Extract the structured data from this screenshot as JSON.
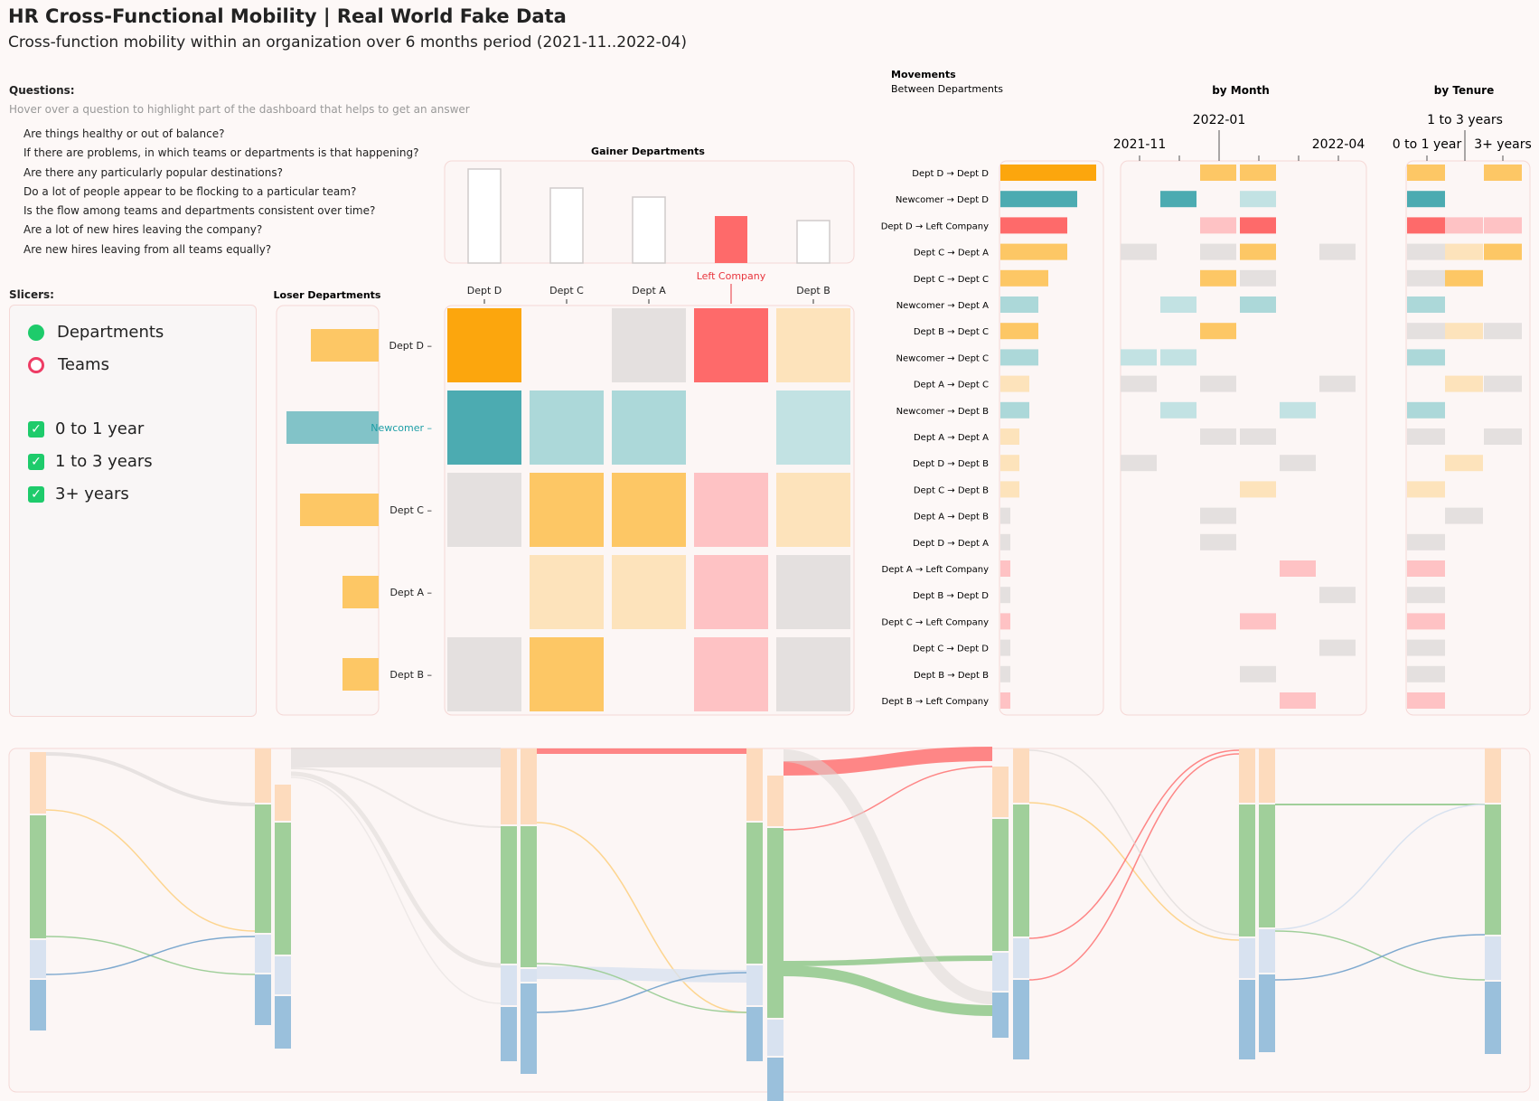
{
  "header": {
    "title": "HR Cross-Functional Mobility | Real World Fake Data",
    "subtitle": "Cross-function mobility within an organization over 6 months period (2021-11..2022-04)"
  },
  "questions": {
    "heading": "Questions:",
    "hint": "Hover over a question to highlight part of the dashboard that helps to get an answer",
    "items": [
      "Are things healthy or out of balance?",
      "If there are problems, in which teams or departments is that happening?",
      "Are there any particularly popular destinations?",
      "Do a lot of people appear to be flocking to a particular team?",
      "Is the flow among teams and departments consistent over time?",
      "Are a lot of new hires leaving the company?",
      "Are new hires leaving from all teams equally?"
    ]
  },
  "slicers": {
    "heading": "Slicers:",
    "grouping": [
      {
        "label": "Departments",
        "selected": true
      },
      {
        "label": "Teams",
        "selected": false
      }
    ],
    "tenure": [
      {
        "label": "0 to 1 year",
        "checked": true
      },
      {
        "label": "1 to 3 years",
        "checked": true
      },
      {
        "label": "3+ years",
        "checked": true
      }
    ]
  },
  "colors": {
    "orange": "#fca60d",
    "orange_mid": "#fdc765",
    "orange_light": "#fde3bb",
    "teal": "#4cabb1",
    "teal_light": "#acd8d9",
    "teal_lighter": "#c2e2e3",
    "red": "#fe6a6a",
    "red_light": "#fec2c4",
    "grey": "#e4e0df",
    "green": "#a0cf9a",
    "blue": "#9ac0dc",
    "blue_light": "#d8e2f0",
    "peach": "#fddbbd",
    "accent_red": "#e8353d",
    "accent_teal": "#1d9ea6"
  },
  "gainer": {
    "title": "Gainer Departments",
    "columns": [
      "Dept D",
      "Dept C",
      "Dept A",
      "Left Company",
      "Dept B"
    ],
    "values": [
      1.0,
      0.8,
      0.7,
      0.5,
      0.45
    ]
  },
  "loser": {
    "title": "Loser Departments",
    "rows": [
      "Dept D",
      "Newcomer",
      "Dept C",
      "Dept A",
      "Dept B"
    ],
    "values": [
      0.72,
      0.98,
      0.84,
      0.38,
      0.38
    ]
  },
  "matrix": {
    "rows": [
      "Dept D",
      "Newcomer",
      "Dept C",
      "Dept A",
      "Dept B"
    ],
    "cols": [
      "Dept D",
      "Dept C",
      "Dept A",
      "Left Company",
      "Dept B"
    ],
    "cells": [
      [
        "orange",
        null,
        "grey",
        "red",
        "orange_light"
      ],
      [
        "teal",
        "teal_light",
        "teal_light",
        null,
        "teal_lighter"
      ],
      [
        "grey",
        "orange_mid",
        "orange_mid",
        "red_light",
        "orange_light"
      ],
      [
        null,
        "orange_light",
        "orange_light",
        "red_light",
        "grey"
      ],
      [
        "grey",
        "orange_mid",
        null,
        "red_light",
        "grey"
      ]
    ]
  },
  "movements": {
    "title": "Movements",
    "subtitle": "Between Departments",
    "by_month_title": "by Month",
    "by_tenure_title": "by Tenure",
    "month_ticks": [
      "2021-11",
      "2022-01",
      "2022-04"
    ],
    "tenure_ticks": [
      "0 to 1 year",
      "1 to 3 years",
      "3+ years"
    ],
    "rows": [
      {
        "label": "Dept D → Dept D",
        "value": 1.0,
        "color": "orange",
        "months": [
          null,
          null,
          "orange_mid",
          "orange_mid",
          null,
          null
        ],
        "tenure": [
          "orange_mid",
          null,
          "orange_mid"
        ]
      },
      {
        "label": "Newcomer → Dept D",
        "value": 0.8,
        "color": "teal",
        "months": [
          null,
          "teal",
          null,
          "teal_lighter",
          null,
          null
        ],
        "tenure": [
          "teal",
          null,
          null
        ]
      },
      {
        "label": "Dept D → Left Company",
        "value": 0.7,
        "color": "red",
        "months": [
          null,
          null,
          "red_light",
          "red",
          null,
          null
        ],
        "tenure": [
          "red",
          "red_light",
          "red_light"
        ]
      },
      {
        "label": "Dept C → Dept A",
        "value": 0.7,
        "color": "orange_mid",
        "months": [
          "grey",
          null,
          "grey",
          "orange_mid",
          null,
          "grey"
        ],
        "tenure": [
          "grey",
          "orange_light",
          "orange_mid"
        ]
      },
      {
        "label": "Dept C → Dept C",
        "value": 0.5,
        "color": "orange_mid",
        "months": [
          null,
          null,
          "orange_mid",
          "grey",
          null,
          null
        ],
        "tenure": [
          "grey",
          "orange_mid",
          null
        ]
      },
      {
        "label": "Newcomer → Dept A",
        "value": 0.4,
        "color": "teal_light",
        "months": [
          null,
          "teal_lighter",
          null,
          "teal_light",
          null,
          null
        ],
        "tenure": [
          "teal_light",
          null,
          null
        ]
      },
      {
        "label": "Dept B → Dept C",
        "value": 0.4,
        "color": "orange_mid",
        "months": [
          null,
          null,
          "orange_mid",
          null,
          null,
          null
        ],
        "tenure": [
          "grey",
          "orange_light",
          "grey"
        ]
      },
      {
        "label": "Newcomer → Dept C",
        "value": 0.4,
        "color": "teal_light",
        "months": [
          "teal_lighter",
          "teal_lighter",
          null,
          null,
          null,
          null
        ],
        "tenure": [
          "teal_light",
          null,
          null
        ]
      },
      {
        "label": "Dept A → Dept C",
        "value": 0.3,
        "color": "orange_light",
        "months": [
          "grey",
          null,
          "grey",
          null,
          null,
          "grey"
        ],
        "tenure": [
          null,
          "orange_light",
          "grey"
        ]
      },
      {
        "label": "Newcomer → Dept B",
        "value": 0.3,
        "color": "teal_light",
        "months": [
          null,
          "teal_lighter",
          null,
          null,
          "teal_lighter",
          null
        ],
        "tenure": [
          "teal_light",
          null,
          null
        ]
      },
      {
        "label": "Dept A → Dept A",
        "value": 0.2,
        "color": "orange_light",
        "months": [
          null,
          null,
          "grey",
          "grey",
          null,
          null
        ],
        "tenure": [
          "grey",
          null,
          "grey"
        ]
      },
      {
        "label": "Dept D → Dept B",
        "value": 0.2,
        "color": "orange_light",
        "months": [
          "grey",
          null,
          null,
          null,
          "grey",
          null
        ],
        "tenure": [
          null,
          "orange_light",
          null
        ]
      },
      {
        "label": "Dept C → Dept B",
        "value": 0.2,
        "color": "orange_light",
        "months": [
          null,
          null,
          null,
          "orange_light",
          null,
          null
        ],
        "tenure": [
          "orange_light",
          null,
          null
        ]
      },
      {
        "label": "Dept A → Dept B",
        "value": 0.1,
        "color": "grey",
        "months": [
          null,
          null,
          "grey",
          null,
          null,
          null
        ],
        "tenure": [
          null,
          "grey",
          null
        ]
      },
      {
        "label": "Dept D → Dept A",
        "value": 0.1,
        "color": "grey",
        "months": [
          null,
          null,
          "grey",
          null,
          null,
          null
        ],
        "tenure": [
          "grey",
          null,
          null
        ]
      },
      {
        "label": "Dept A → Left Company",
        "value": 0.1,
        "color": "red_light",
        "months": [
          null,
          null,
          null,
          null,
          "red_light",
          null
        ],
        "tenure": [
          "red_light",
          null,
          null
        ]
      },
      {
        "label": "Dept B → Dept D",
        "value": 0.1,
        "color": "grey",
        "months": [
          null,
          null,
          null,
          null,
          null,
          "grey"
        ],
        "tenure": [
          "grey",
          null,
          null
        ]
      },
      {
        "label": "Dept C → Left Company",
        "value": 0.1,
        "color": "red_light",
        "months": [
          null,
          null,
          null,
          "red_light",
          null,
          null
        ],
        "tenure": [
          "red_light",
          null,
          null
        ]
      },
      {
        "label": "Dept C → Dept D",
        "value": 0.1,
        "color": "grey",
        "months": [
          null,
          null,
          null,
          null,
          null,
          "grey"
        ],
        "tenure": [
          "grey",
          null,
          null
        ]
      },
      {
        "label": "Dept B → Dept B",
        "value": 0.1,
        "color": "grey",
        "months": [
          null,
          null,
          null,
          "grey",
          null,
          null
        ],
        "tenure": [
          "grey",
          null,
          null
        ]
      },
      {
        "label": "Dept B → Left Company",
        "value": 0.1,
        "color": "red_light",
        "months": [
          null,
          null,
          null,
          null,
          "red_light",
          null
        ],
        "tenure": [
          "red_light",
          null,
          null
        ]
      }
    ]
  },
  "sankey": {
    "stage_colors": [
      "peach",
      "green",
      "blue_light",
      "blue"
    ],
    "stages": [
      [
        0.06,
        0.13,
        0.13,
        0.05
      ],
      [
        0.06,
        0.13,
        0.13,
        0.05
      ],
      [
        0.06,
        0.13,
        0.13,
        0.05
      ],
      [
        0.06,
        0.13,
        0.13,
        0.05
      ],
      [
        0.06,
        0.13,
        0.13,
        0.05
      ],
      [
        0.06,
        0.13,
        0.13,
        0.05
      ]
    ]
  }
}
